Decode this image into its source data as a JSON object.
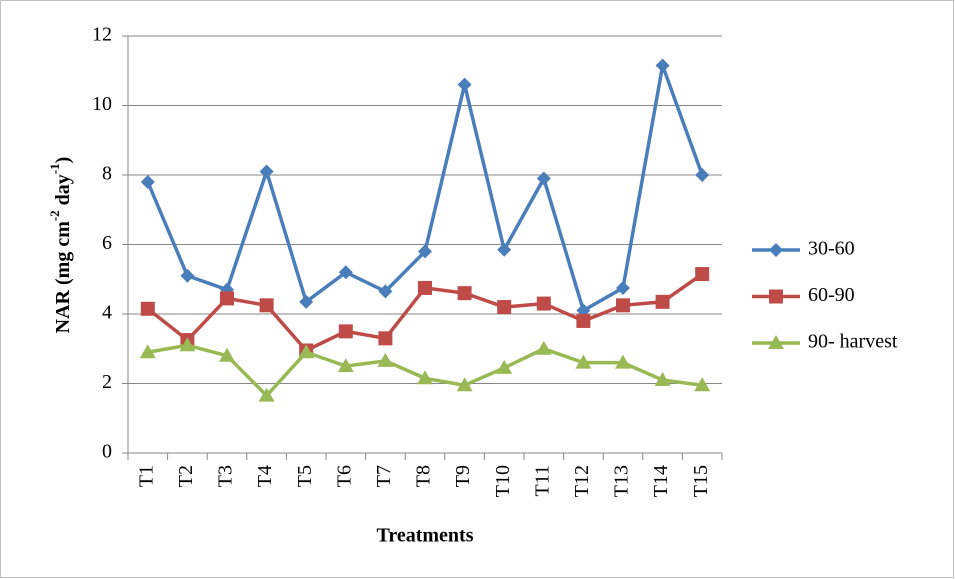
{
  "chart_data": {
    "type": "line",
    "x_label": "Treatments",
    "y_label": [
      "NAR (mg cm",
      "-2",
      " day",
      "-1",
      ")"
    ],
    "categories": [
      "T1",
      "T2",
      "T3",
      "T4",
      "T5",
      "T6",
      "T7",
      "T8",
      "T9",
      "T10",
      "T11",
      "T12",
      "T13",
      "T14",
      "T15"
    ],
    "series": [
      {
        "name": "30-60",
        "color": "#4a7ebb",
        "marker": "diamond",
        "values": [
          7.8,
          5.1,
          4.7,
          8.1,
          4.35,
          5.2,
          4.65,
          5.8,
          10.6,
          5.85,
          7.9,
          4.1,
          4.75,
          11.15,
          8.0
        ]
      },
      {
        "name": "60-90",
        "color": "#be4b48",
        "marker": "square",
        "values": [
          4.15,
          3.25,
          4.45,
          4.25,
          2.95,
          3.5,
          3.3,
          4.75,
          4.6,
          4.2,
          4.3,
          3.8,
          4.25,
          4.35,
          5.15
        ]
      },
      {
        "name": "90- harvest",
        "color": "#98b954",
        "marker": "triangle",
        "values": [
          2.9,
          3.1,
          2.8,
          1.65,
          2.9,
          2.5,
          2.65,
          2.15,
          1.95,
          2.45,
          3.0,
          2.6,
          2.6,
          2.1,
          1.95
        ]
      }
    ],
    "ylim": [
      0,
      12
    ],
    "yticks": [
      0,
      2,
      4,
      6,
      8,
      10,
      12
    ],
    "grid": true,
    "legend": "right"
  }
}
